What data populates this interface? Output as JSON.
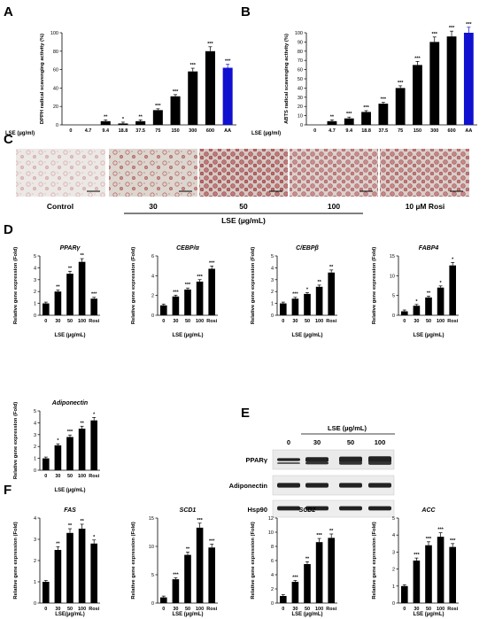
{
  "panel_labels": [
    "A",
    "B",
    "C",
    "D",
    "E",
    "F"
  ],
  "micrograph_labels": [
    "Control",
    "30",
    "50",
    "100",
    "10 µM Rosi"
  ],
  "micrograph_xlabel": "LSE (µg/mL)",
  "western": {
    "title": "LSE (µg/mL)",
    "lanes": [
      "0",
      "30",
      "50",
      "100"
    ],
    "rows": [
      "PPARγ",
      "Adiponectin",
      "Hsp90"
    ]
  },
  "chart_data": [
    {
      "id": "A",
      "type": "bar",
      "ylabel": "DPPH radical scavenging activity (%)",
      "xlabel": "LSE (µg/ml)",
      "categories": [
        "0",
        "4.7",
        "9.4",
        "18.8",
        "37.5",
        "75",
        "150",
        "300",
        "600",
        "AA"
      ],
      "values": [
        0,
        0,
        4,
        1.5,
        4,
        16,
        31,
        58,
        80,
        62
      ],
      "significance": [
        "",
        "",
        "**",
        "*",
        "**",
        "***",
        "***",
        "***",
        "***",
        "***"
      ],
      "colors": [
        "#000000",
        "#000000",
        "#000000",
        "#000000",
        "#000000",
        "#000000",
        "#000000",
        "#000000",
        "#000000",
        "#1010d0"
      ],
      "ylim": [
        0,
        100
      ],
      "yticks": [
        "0",
        "20",
        "40",
        "60",
        "80",
        "100"
      ]
    },
    {
      "id": "B",
      "type": "bar",
      "ylabel": "ABTS radical scavenging activity (%)",
      "xlabel": "LSE (µg/ml)",
      "categories": [
        "0",
        "4.7",
        "9.4",
        "18.8",
        "37.5",
        "75",
        "150",
        "300",
        "600",
        "AA"
      ],
      "values": [
        0,
        4,
        7,
        14,
        23,
        40,
        65,
        90,
        96,
        100
      ],
      "significance": [
        "",
        "**",
        "***",
        "***",
        "***",
        "***",
        "***",
        "***",
        "***",
        "***"
      ],
      "colors": [
        "#000000",
        "#000000",
        "#000000",
        "#000000",
        "#000000",
        "#000000",
        "#000000",
        "#000000",
        "#000000",
        "#1010d0"
      ],
      "ylim": [
        0,
        100
      ],
      "yticks": [
        "0",
        "10",
        "20",
        "30",
        "40",
        "50",
        "60",
        "70",
        "80",
        "90",
        "100"
      ]
    },
    {
      "id": "PPARg",
      "type": "bar",
      "title": "PPARγ",
      "ylabel": "Relative gene expression (Fold)",
      "xlabel": "LSE (µg/mL)",
      "categories": [
        "0",
        "30",
        "50",
        "100",
        "Rosi"
      ],
      "values": [
        1,
        2,
        3.5,
        4.5,
        1.4
      ],
      "significance": [
        "",
        "**",
        "**",
        "**",
        "***"
      ],
      "ylim": [
        0,
        5
      ],
      "yticks": [
        "0",
        "1",
        "2",
        "3",
        "4",
        "5"
      ]
    },
    {
      "id": "CEBPa",
      "type": "bar",
      "title": "CEBP/α",
      "ylabel": "Relative gene expression (Fold)",
      "xlabel": "LSE (µg/mL)",
      "categories": [
        "0",
        "30",
        "50",
        "100",
        "Rosi"
      ],
      "values": [
        1,
        1.9,
        2.6,
        3.4,
        4.7
      ],
      "significance": [
        "",
        "***",
        "***",
        "***",
        "***"
      ],
      "ylim": [
        0,
        6
      ],
      "yticks": [
        "0",
        "2",
        "4",
        "6"
      ]
    },
    {
      "id": "CEBPb",
      "type": "bar",
      "title": "C/EBPβ",
      "ylabel": "Relative gene expression (Fold)",
      "xlabel": "LSE (µg/mL)",
      "categories": [
        "0",
        "30",
        "50",
        "100",
        "Rosi"
      ],
      "values": [
        1,
        1.4,
        1.8,
        2.4,
        3.6
      ],
      "significance": [
        "",
        "***",
        "*",
        "**",
        "**"
      ],
      "ylim": [
        0,
        5
      ],
      "yticks": [
        "0",
        "1",
        "2",
        "3",
        "4",
        "5"
      ]
    },
    {
      "id": "FABP4",
      "type": "bar",
      "title": "FABP4",
      "ylabel": "Relative gene expression (Fold)",
      "xlabel": "LSE (µg/mL)",
      "categories": [
        "0",
        "30",
        "50",
        "100",
        "Rosi"
      ],
      "values": [
        1,
        2.4,
        4.5,
        7,
        12.6
      ],
      "significance": [
        "",
        "*",
        "**",
        "*",
        "*"
      ],
      "ylim": [
        0,
        15
      ],
      "yticks": [
        "0",
        "5",
        "10",
        "15"
      ]
    },
    {
      "id": "Adiponectin",
      "type": "bar",
      "title": "Adiponectin",
      "ylabel": "Relative gene expression (Fold)",
      "xlabel": "LSE (µg/mL)",
      "categories": [
        "0",
        "30",
        "50",
        "100",
        "Rosi"
      ],
      "values": [
        1,
        2.1,
        2.8,
        3.5,
        4.2
      ],
      "significance": [
        "",
        "*",
        "***",
        "**",
        "*"
      ],
      "ylim": [
        0,
        5
      ],
      "yticks": [
        "0",
        "1",
        "2",
        "3",
        "4",
        "5"
      ]
    },
    {
      "id": "FAS",
      "type": "bar",
      "title": "FAS",
      "ylabel": "Relative gene expression (Fold)",
      "xlabel": "LSE(µg/mL)",
      "categories": [
        "0",
        "30",
        "50",
        "100",
        "Rosi"
      ],
      "values": [
        1,
        2.5,
        3.3,
        3.5,
        2.8
      ],
      "significance": [
        "",
        "**",
        "**",
        "**",
        "*"
      ],
      "ylim": [
        0,
        4
      ],
      "yticks": [
        "0",
        "1",
        "2",
        "3",
        "4"
      ]
    },
    {
      "id": "SCD1",
      "type": "bar",
      "title": "SCD1",
      "ylabel": "Relative gene expression (Fold)",
      "xlabel": "LSE (µg/mL)",
      "categories": [
        "0",
        "30",
        "50",
        "100",
        "Rosi"
      ],
      "values": [
        1,
        4.2,
        8.5,
        13.3,
        9.8
      ],
      "significance": [
        "",
        "***",
        "**",
        "***",
        "***"
      ],
      "ylim": [
        0,
        15
      ],
      "yticks": [
        "0",
        "5",
        "10",
        "15"
      ]
    },
    {
      "id": "SCD2",
      "type": "bar",
      "title": "SCD2",
      "ylabel": "Relative gene expression (Fold)",
      "xlabel": "LSE (µg/mL)",
      "categories": [
        "0",
        "30",
        "50",
        "100",
        "Rosi"
      ],
      "values": [
        1,
        3,
        5.5,
        8.6,
        9.2
      ],
      "significance": [
        "",
        "***",
        "**",
        "***",
        "**"
      ],
      "ylim": [
        0,
        12
      ],
      "yticks": [
        "0",
        "2",
        "4",
        "6",
        "8",
        "10",
        "12"
      ]
    },
    {
      "id": "ACC",
      "type": "bar",
      "title": "ACC",
      "ylabel": "Relative gene expression (Fold)",
      "xlabel": "LSE (µg/mL)",
      "categories": [
        "0",
        "30",
        "50",
        "100",
        "Rosi"
      ],
      "values": [
        1,
        2.5,
        3.4,
        3.9,
        3.3
      ],
      "significance": [
        "",
        "***",
        "***",
        "***",
        "***"
      ],
      "ylim": [
        0,
        5
      ],
      "yticks": [
        "0",
        "1",
        "2",
        "3",
        "4",
        "5"
      ]
    }
  ]
}
